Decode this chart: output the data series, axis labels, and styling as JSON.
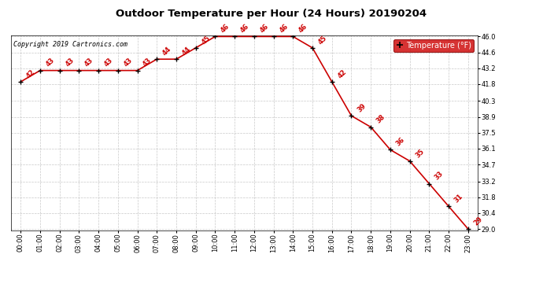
{
  "title": "Outdoor Temperature per Hour (24 Hours) 20190204",
  "copyright": "Copyright 2019 Cartronics.com",
  "legend_label": "Temperature (°F)",
  "hours": [
    0,
    1,
    2,
    3,
    4,
    5,
    6,
    7,
    8,
    9,
    10,
    11,
    12,
    13,
    14,
    15,
    16,
    17,
    18,
    19,
    20,
    21,
    22,
    23
  ],
  "hour_labels": [
    "00:00",
    "01:00",
    "02:00",
    "03:00",
    "04:00",
    "05:00",
    "06:00",
    "07:00",
    "08:00",
    "09:00",
    "10:00",
    "11:00",
    "12:00",
    "13:00",
    "14:00",
    "15:00",
    "16:00",
    "17:00",
    "18:00",
    "19:00",
    "20:00",
    "21:00",
    "22:00",
    "23:00"
  ],
  "temps": [
    42,
    43,
    43,
    43,
    43,
    43,
    43,
    44,
    44,
    45,
    46,
    46,
    46,
    46,
    46,
    45,
    42,
    39,
    38,
    36,
    35,
    33,
    31,
    29
  ],
  "ylim": [
    29.0,
    46.0
  ],
  "yticks": [
    29.0,
    30.4,
    31.8,
    33.2,
    34.7,
    36.1,
    37.5,
    38.9,
    40.3,
    41.8,
    43.2,
    44.6,
    46.0
  ],
  "line_color": "#cc0000",
  "marker_color": "#000000",
  "label_color": "#cc0000",
  "bg_color": "#ffffff",
  "grid_color": "#bbbbbb",
  "title_color": "#000000",
  "copyright_color": "#000000",
  "legend_bg": "#cc0000",
  "legend_text_color": "#ffffff",
  "title_fontsize": 9.5,
  "copyright_fontsize": 6,
  "label_fontsize": 6,
  "tick_fontsize": 6,
  "legend_fontsize": 7
}
